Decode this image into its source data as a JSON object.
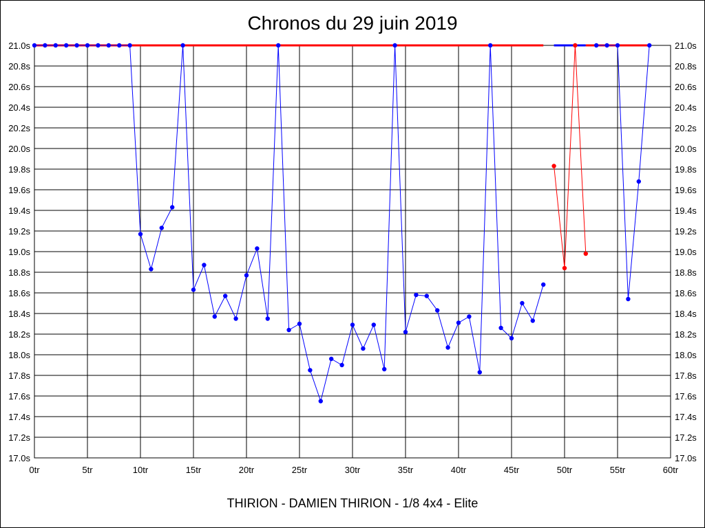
{
  "chart_data": {
    "type": "line",
    "title": "Chronos du 29 juin 2019",
    "subtitle": "THIRION - DAMIEN THIRION - 1/8 4x4 - Elite",
    "xlim": [
      0,
      60
    ],
    "ylim": [
      17.0,
      21.0
    ],
    "x_ticks": [
      0,
      5,
      10,
      15,
      20,
      25,
      30,
      35,
      40,
      45,
      50,
      55,
      60
    ],
    "x_tick_labels": [
      "0tr",
      "5tr",
      "10tr",
      "15tr",
      "20tr",
      "25tr",
      "30tr",
      "35tr",
      "40tr",
      "45tr",
      "50tr",
      "55tr",
      "60tr"
    ],
    "y_ticks": [
      17.0,
      17.2,
      17.4,
      17.6,
      17.8,
      18.0,
      18.2,
      18.4,
      18.6,
      18.8,
      19.0,
      19.2,
      19.4,
      19.6,
      19.8,
      20.0,
      20.2,
      20.4,
      20.6,
      20.8,
      21.0
    ],
    "y_tick_labels": [
      "17.0s",
      "17.2s",
      "17.4s",
      "17.6s",
      "17.8s",
      "18.0s",
      "18.2s",
      "18.4s",
      "18.6s",
      "18.8s",
      "19.0s",
      "19.2s",
      "19.4s",
      "19.6s",
      "19.8s",
      "20.0s",
      "20.2s",
      "20.4s",
      "20.6s",
      "20.8s",
      "21.0s"
    ],
    "grid": true,
    "colors": {
      "blue_series": "#0000ff",
      "red_series": "#ff0000",
      "grid": "#000000"
    },
    "series": [
      {
        "color": "#0000ff",
        "points": [
          [
            0,
            21.0
          ],
          [
            1,
            21.0
          ],
          [
            2,
            21.0
          ],
          [
            3,
            21.0
          ],
          [
            4,
            21.0
          ],
          [
            5,
            21.0
          ],
          [
            6,
            21.0
          ],
          [
            7,
            21.0
          ],
          [
            8,
            21.0
          ],
          [
            9,
            21.0
          ],
          [
            10,
            19.17
          ],
          [
            11,
            18.83
          ],
          [
            12,
            19.23
          ],
          [
            13,
            19.43
          ],
          [
            14,
            21.0
          ],
          [
            15,
            18.63
          ],
          [
            16,
            18.87
          ],
          [
            17,
            18.37
          ],
          [
            18,
            18.57
          ],
          [
            19,
            18.35
          ],
          [
            20,
            18.77
          ],
          [
            21,
            19.03
          ],
          [
            22,
            18.35
          ],
          [
            23,
            21.0
          ],
          [
            24,
            18.24
          ],
          [
            25,
            18.3
          ],
          [
            26,
            17.85
          ],
          [
            27,
            17.55
          ],
          [
            28,
            17.96
          ],
          [
            29,
            17.9
          ],
          [
            30,
            18.29
          ],
          [
            31,
            18.06
          ],
          [
            32,
            18.29
          ],
          [
            33,
            17.86
          ],
          [
            34,
            21.0
          ],
          [
            35,
            18.22
          ],
          [
            36,
            18.58
          ],
          [
            37,
            18.57
          ],
          [
            38,
            18.43
          ],
          [
            39,
            18.07
          ],
          [
            40,
            18.31
          ],
          [
            41,
            18.37
          ],
          [
            42,
            17.83
          ],
          [
            43,
            21.0
          ],
          [
            44,
            18.26
          ],
          [
            45,
            18.16
          ],
          [
            46,
            18.5
          ],
          [
            47,
            18.33
          ],
          [
            48,
            18.68
          ]
        ]
      },
      {
        "color": "#ff0000",
        "points": [
          [
            49,
            19.83
          ],
          [
            50,
            18.84
          ],
          [
            51,
            21.0
          ],
          [
            52,
            18.98
          ]
        ]
      },
      {
        "color": "#0000ff",
        "points": [
          [
            53,
            21.0
          ],
          [
            54,
            21.0
          ],
          [
            55,
            21.0
          ],
          [
            56,
            18.54
          ],
          [
            57,
            19.68
          ],
          [
            58,
            21.0
          ]
        ]
      }
    ],
    "top_bands": [
      {
        "color": "#ff0000",
        "x_start": 0,
        "x_end": 48
      },
      {
        "color": "#0000ff",
        "x_start": 49,
        "x_end": 52
      },
      {
        "color": "#ff0000",
        "x_start": 52,
        "x_end": 58
      }
    ]
  }
}
